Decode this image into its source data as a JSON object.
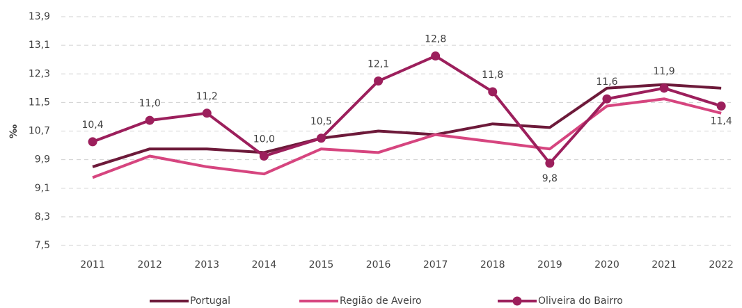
{
  "chart_data": {
    "type": "line",
    "y_label": "‰",
    "categories": [
      "2011",
      "2012",
      "2013",
      "2014",
      "2015",
      "2016",
      "2017",
      "2018",
      "2019",
      "2020",
      "2021",
      "2022"
    ],
    "series": [
      {
        "name": "Portugal",
        "color": "#6d1a3a",
        "values": [
          9.7,
          10.2,
          10.2,
          10.1,
          10.5,
          10.7,
          10.6,
          10.9,
          10.8,
          11.9,
          12.0,
          11.9
        ]
      },
      {
        "name": "Região de Aveiro",
        "color": "#d6457f",
        "values": [
          9.4,
          10.0,
          9.7,
          9.5,
          10.2,
          10.1,
          10.6,
          10.4,
          10.2,
          11.4,
          11.6,
          11.2
        ]
      },
      {
        "name": "Oliveira do Bairro",
        "color": "#9c1f5c",
        "markers": true,
        "values": [
          10.4,
          11.0,
          11.2,
          10.0,
          10.5,
          12.1,
          12.8,
          11.8,
          9.8,
          11.6,
          11.9,
          11.4
        ],
        "value_labels": [
          "10,4",
          "11,0",
          "11,2",
          "10,0",
          "10,5",
          "12,1",
          "12,8",
          "11,8",
          "9,8",
          "11,6",
          "11,9",
          "11,4"
        ]
      }
    ],
    "ylim": [
      7.5,
      13.9
    ],
    "yticks": [
      {
        "value": 7.5,
        "label": "7,5"
      },
      {
        "value": 8.3,
        "label": "8,3"
      },
      {
        "value": 9.1,
        "label": "9,1"
      },
      {
        "value": 9.9,
        "label": "9,9"
      },
      {
        "value": 10.7,
        "label": "10,7"
      },
      {
        "value": 11.5,
        "label": "11,5"
      },
      {
        "value": 12.3,
        "label": "12,3"
      },
      {
        "value": 13.1,
        "label": "13,1"
      },
      {
        "value": 13.9,
        "label": "13,9"
      }
    ],
    "grid": true,
    "legend": "bottom"
  }
}
